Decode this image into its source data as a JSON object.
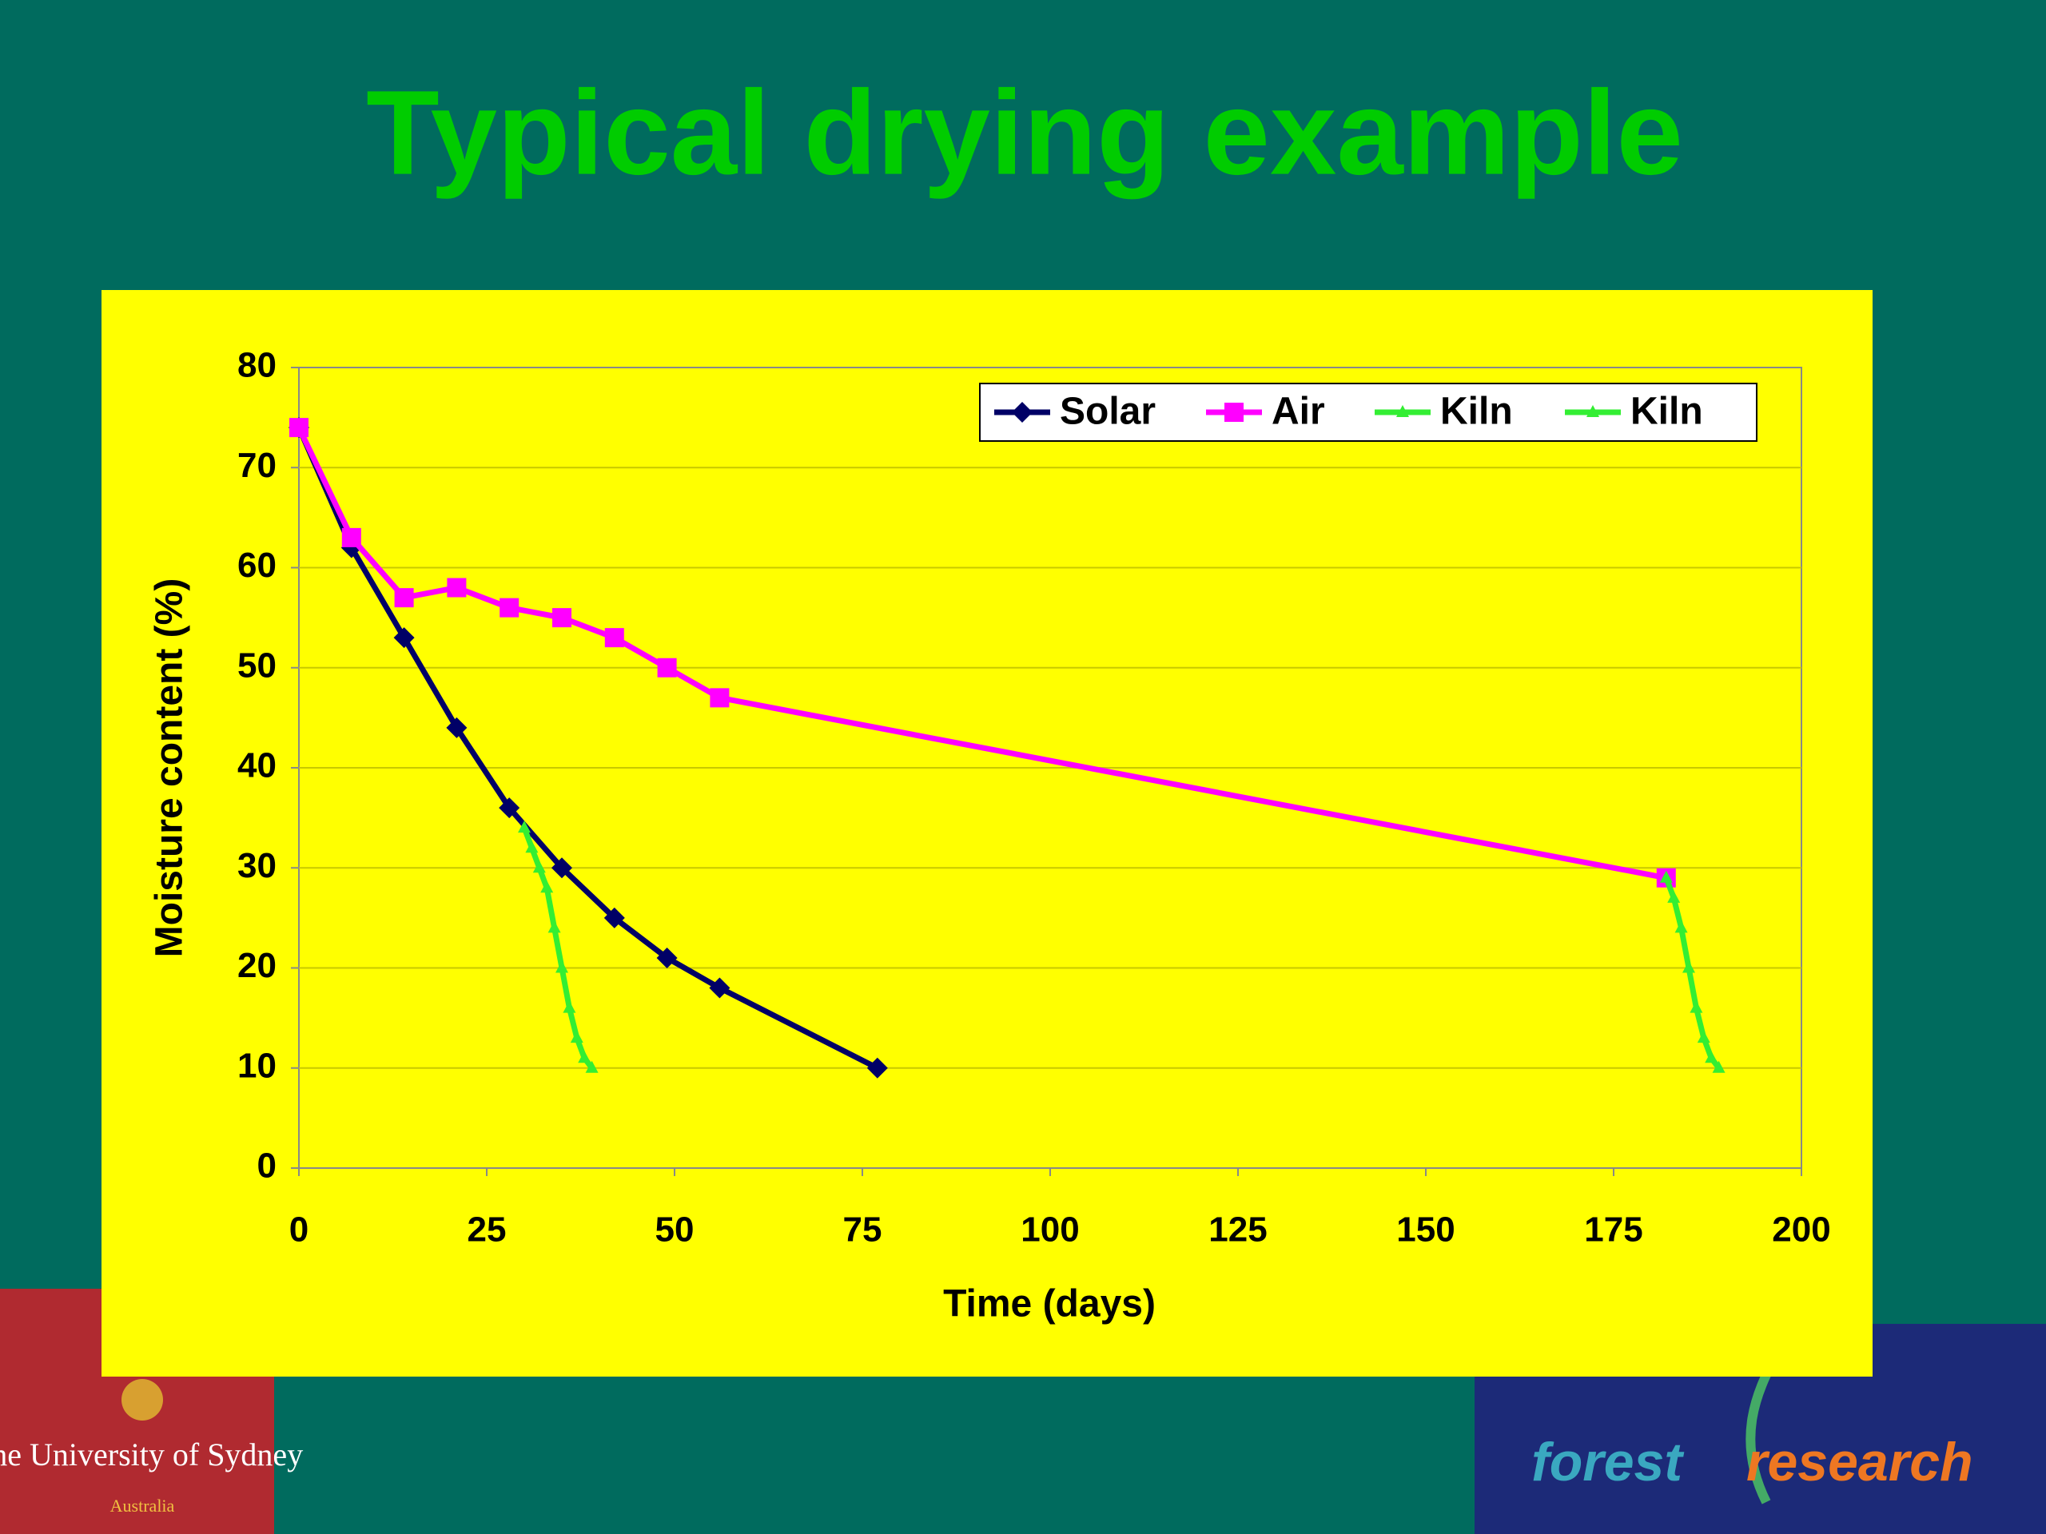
{
  "chart_data": {
    "type": "line",
    "title": "Typical drying example",
    "x_label": "Time (days)",
    "y_label": "Moisture content (%)",
    "xlim": [
      0,
      200
    ],
    "xticks": [
      0,
      25,
      50,
      75,
      100,
      125,
      150,
      175,
      200
    ],
    "ylim": [
      0,
      80
    ],
    "yticks": [
      0,
      10,
      20,
      30,
      40,
      50,
      60,
      70,
      80
    ],
    "grid": true,
    "legend": "top-right",
    "series": [
      {
        "name": "Solar",
        "color": "#000066",
        "marker": "diamond",
        "x": [
          0,
          7,
          14,
          21,
          28,
          35,
          42,
          49,
          56,
          77
        ],
        "values": [
          74,
          62,
          53,
          44,
          36,
          30,
          25,
          21,
          18,
          10
        ]
      },
      {
        "name": "Air",
        "color": "#ff00ff",
        "marker": "square",
        "x": [
          0,
          7,
          14,
          21,
          28,
          35,
          42,
          49,
          56,
          182
        ],
        "values": [
          74,
          63,
          57,
          58,
          56,
          55,
          53,
          50,
          47,
          29
        ]
      },
      {
        "name": "Kiln",
        "color": "#33ee33",
        "marker": "triangle",
        "x": [
          30,
          31,
          32,
          33,
          34,
          35,
          36,
          37,
          38,
          39
        ],
        "values": [
          34,
          32,
          30,
          28,
          24,
          20,
          16,
          13,
          11,
          10
        ]
      },
      {
        "name": "Kiln",
        "color": "#33ee33",
        "marker": "triangle",
        "x": [
          182,
          183,
          184,
          185,
          186,
          187,
          188,
          189
        ],
        "values": [
          29,
          27,
          24,
          20,
          16,
          13,
          11,
          10
        ]
      }
    ]
  },
  "logos": {
    "left": {
      "line1": "The University of Sydney",
      "line2": "Australia"
    },
    "right": {
      "word1": "forest",
      "word2": "research"
    }
  }
}
